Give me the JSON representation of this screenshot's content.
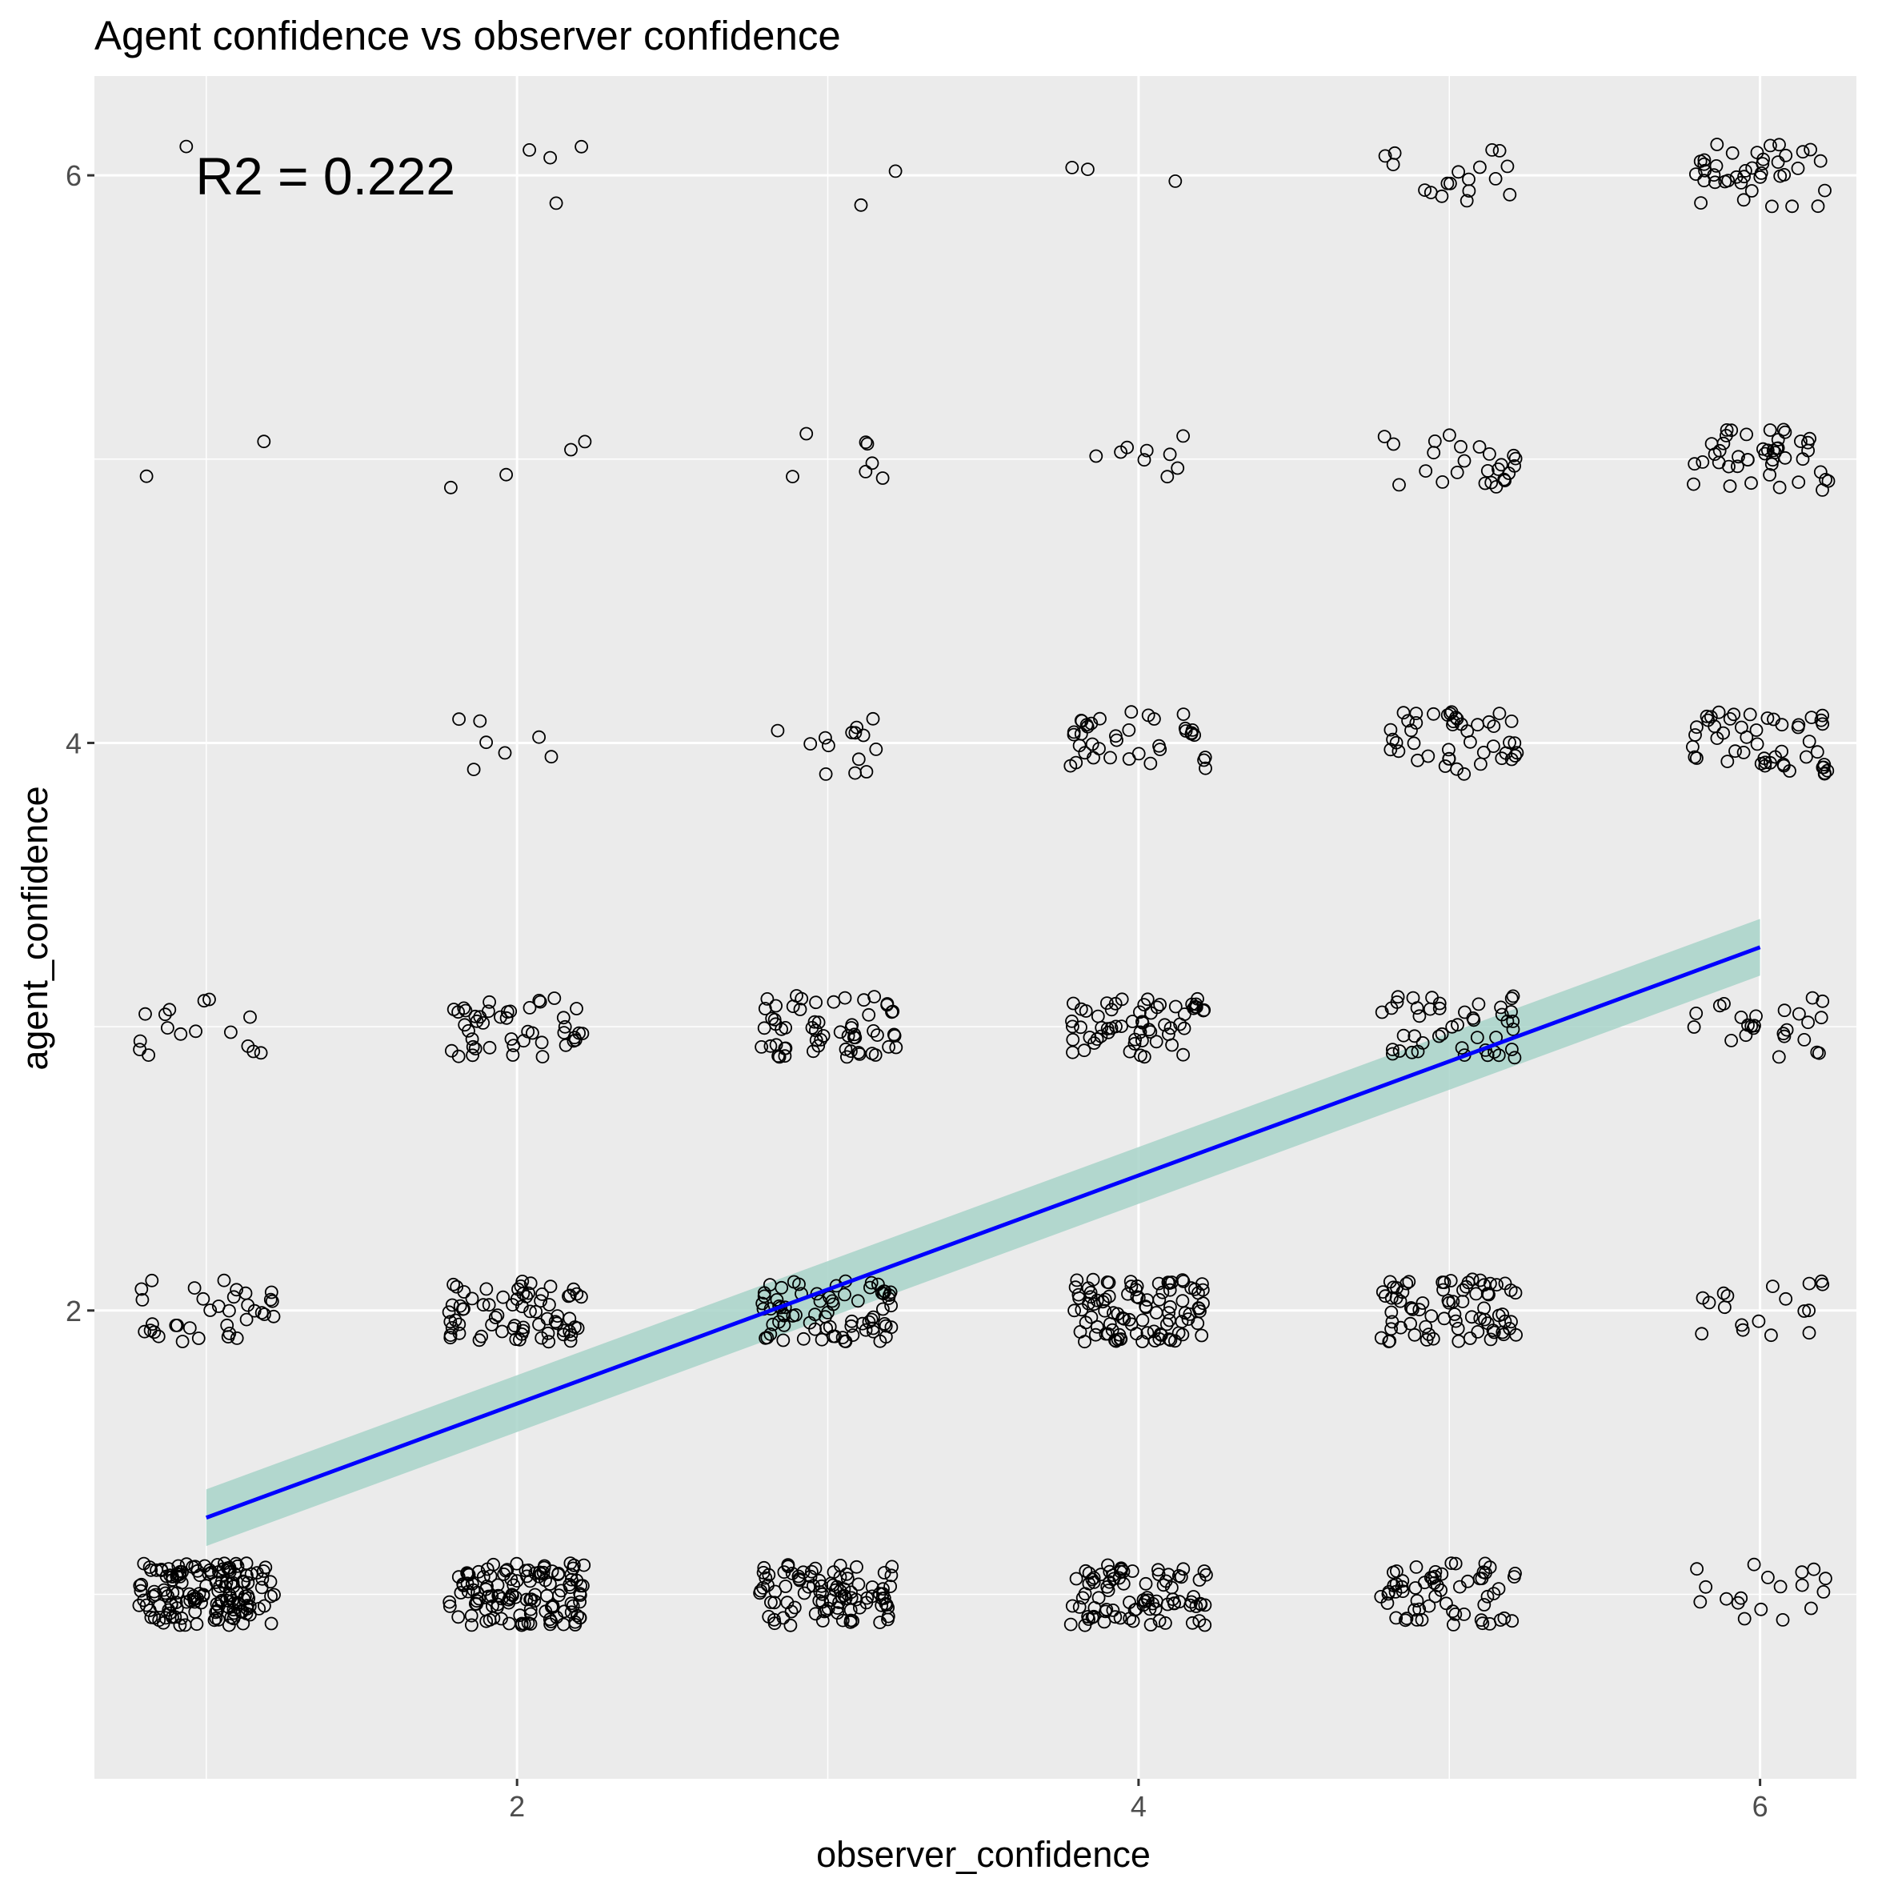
{
  "chart_data": {
    "type": "scatter",
    "title": "Agent confidence vs observer confidence",
    "xlabel": "observer_confidence",
    "ylabel": "agent_confidence",
    "xlim": [
      0.64,
      6.31
    ],
    "ylim": [
      0.35,
      6.35
    ],
    "x_ticks": [
      2,
      4,
      6
    ],
    "y_ticks": [
      2,
      4,
      6
    ],
    "x_tick_labels": [
      "2",
      "4",
      "6"
    ],
    "y_tick_labels": [
      "2",
      "4",
      "6"
    ],
    "grid": true,
    "jitter": true,
    "annotation": {
      "text": "R2 =  0.222",
      "x": 1.3,
      "y": 6.0
    },
    "points": [
      {
        "x": 1,
        "y": 1,
        "n": 150
      },
      {
        "x": 1,
        "y": 2,
        "n": 35
      },
      {
        "x": 1,
        "y": 3,
        "n": 16
      },
      {
        "x": 1,
        "y": 5,
        "n": 2
      },
      {
        "x": 1,
        "y": 6,
        "n": 1
      },
      {
        "x": 2,
        "y": 1,
        "n": 120
      },
      {
        "x": 2,
        "y": 2,
        "n": 70
      },
      {
        "x": 2,
        "y": 3,
        "n": 45
      },
      {
        "x": 2,
        "y": 4,
        "n": 7
      },
      {
        "x": 2,
        "y": 5,
        "n": 4
      },
      {
        "x": 2,
        "y": 6,
        "n": 4
      },
      {
        "x": 3,
        "y": 1,
        "n": 95
      },
      {
        "x": 3,
        "y": 2,
        "n": 75
      },
      {
        "x": 3,
        "y": 3,
        "n": 60
      },
      {
        "x": 3,
        "y": 4,
        "n": 14
      },
      {
        "x": 3,
        "y": 5,
        "n": 7
      },
      {
        "x": 3,
        "y": 6,
        "n": 2
      },
      {
        "x": 4,
        "y": 1,
        "n": 85
      },
      {
        "x": 4,
        "y": 2,
        "n": 95
      },
      {
        "x": 4,
        "y": 3,
        "n": 60
      },
      {
        "x": 4,
        "y": 4,
        "n": 38
      },
      {
        "x": 4,
        "y": 5,
        "n": 9
      },
      {
        "x": 4,
        "y": 6,
        "n": 3
      },
      {
        "x": 5,
        "y": 1,
        "n": 60
      },
      {
        "x": 5,
        "y": 2,
        "n": 75
      },
      {
        "x": 5,
        "y": 3,
        "n": 45
      },
      {
        "x": 5,
        "y": 4,
        "n": 45
      },
      {
        "x": 5,
        "y": 5,
        "n": 25
      },
      {
        "x": 5,
        "y": 6,
        "n": 18
      },
      {
        "x": 6,
        "y": 1,
        "n": 18
      },
      {
        "x": 6,
        "y": 2,
        "n": 18
      },
      {
        "x": 6,
        "y": 3,
        "n": 25
      },
      {
        "x": 6,
        "y": 4,
        "n": 50
      },
      {
        "x": 6,
        "y": 5,
        "n": 45
      },
      {
        "x": 6,
        "y": 6,
        "n": 40
      }
    ],
    "series": [
      {
        "type": "regression",
        "x": [
          1,
          6
        ],
        "y": [
          1.27,
          3.28
        ],
        "ci_lower": [
          1.17,
          3.18
        ],
        "ci_upper": [
          1.37,
          3.38
        ],
        "color": "#0000ff",
        "ci_color": "#a8d4c9"
      }
    ]
  },
  "colors": {
    "panel_background": "#ebebeb",
    "gridline": "#ffffff",
    "point_stroke": "#000000",
    "line": "#0000ff",
    "ci_band": "#a8d4c9"
  }
}
